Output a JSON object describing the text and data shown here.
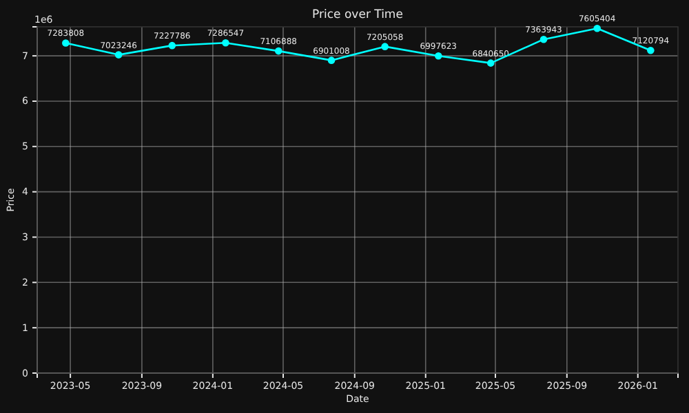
{
  "chart_data": {
    "type": "line",
    "title": "Price over Time",
    "xlabel": "Date",
    "ylabel": "Price",
    "annotations": [
      "1e6",
      {
        "text": "7283808",
        "x": "2023-04-23",
        "y": 7.283808
      },
      {
        "text": "7023246",
        "x": "2023-07-23",
        "y": 7.023246
      },
      {
        "text": "7227786",
        "x": "2023-10-23",
        "y": 7.227786
      },
      {
        "text": "7286547",
        "x": "2024-01-23",
        "y": 7.286547
      },
      {
        "text": "7106888",
        "x": "2024-04-23",
        "y": 7.106888
      },
      {
        "text": "6901008",
        "x": "2024-07-23",
        "y": 6.901008
      },
      {
        "text": "7205058",
        "x": "2024-10-23",
        "y": 7.205058
      },
      {
        "text": "6997623",
        "x": "2025-01-23",
        "y": 6.997623
      },
      {
        "text": "6840650",
        "x": "2025-04-23",
        "y": 6.84065
      },
      {
        "text": "7363943",
        "x": "2025-07-23",
        "y": 7.363943
      },
      {
        "text": "7605404",
        "x": "2025-10-23",
        "y": 7.605404
      },
      {
        "text": "7120794",
        "x": "2026-01-23",
        "y": 7.120794
      }
    ],
    "x": [
      "2023-04-23",
      "2023-07-23",
      "2023-10-23",
      "2024-01-23",
      "2024-04-23",
      "2024-07-23",
      "2024-10-23",
      "2025-01-23",
      "2025-04-23",
      "2025-07-23",
      "2025-10-23",
      "2026-01-23"
    ],
    "series": [
      {
        "color": "#00ffff",
        "values": [
          7.283808,
          7.023246,
          7.227786,
          7.286547,
          7.106888,
          6.901008,
          7.205058,
          6.997623,
          6.84065,
          7.363943,
          7.605404,
          7.120794
        ]
      }
    ],
    "marker": "circle",
    "line_style": "solid",
    "grid": true,
    "xlim": [
      "2023-03-05",
      "2026-03-11"
    ],
    "xticks": [
      {
        "value": "2023-05-01",
        "label": "2023-05"
      },
      {
        "value": "2023-09-01",
        "label": "2023-09"
      },
      {
        "value": "2024-01-01",
        "label": "2024-01"
      },
      {
        "value": "2024-05-01",
        "label": "2024-05"
      },
      {
        "value": "2024-09-01",
        "label": "2024-09"
      },
      {
        "value": "2025-01-01",
        "label": "2025-01"
      },
      {
        "value": "2025-05-01",
        "label": "2025-05"
      },
      {
        "value": "2025-09-01",
        "label": "2025-09"
      },
      {
        "value": "2026-01-01",
        "label": "2026-01"
      }
    ],
    "ylim": [
      0,
      7.64
    ],
    "yticks": [
      0,
      1,
      2,
      3,
      4,
      5,
      6,
      7
    ]
  }
}
